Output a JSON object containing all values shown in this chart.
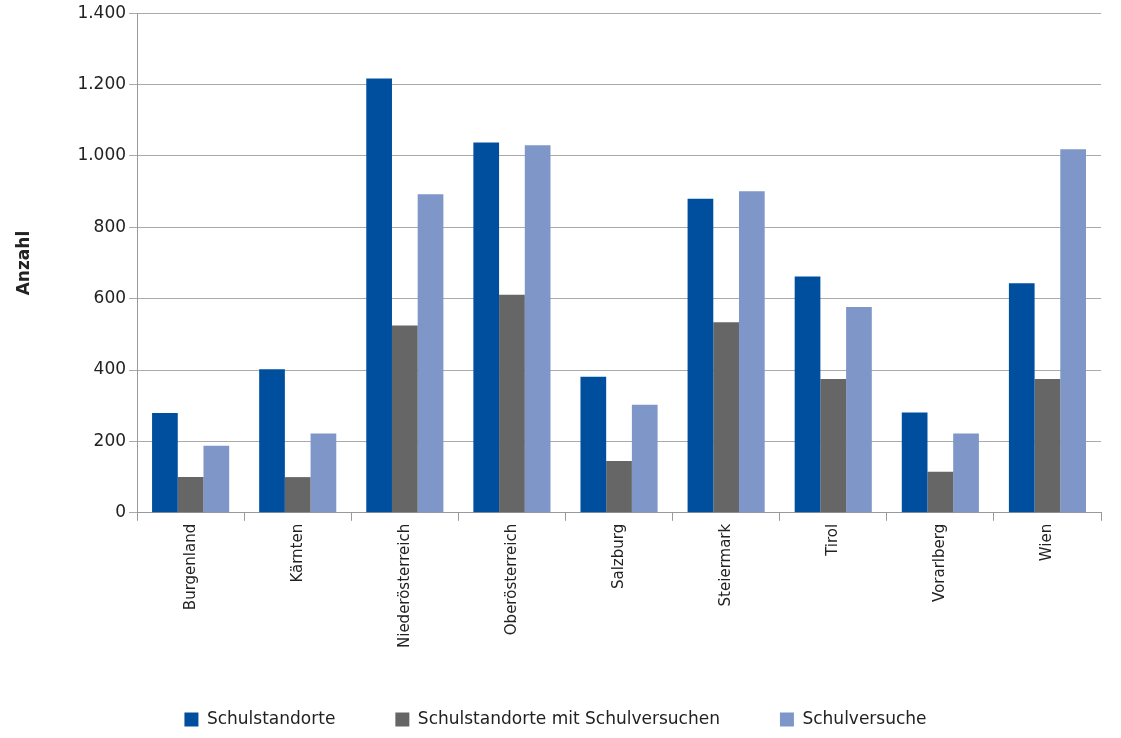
{
  "chart_data": {
    "type": "bar",
    "ylabel": "Anzahl",
    "categories": [
      "Burgenland",
      "Kärnten",
      "Niederösterreich",
      "Oberösterreich",
      "Salzburg",
      "Steiermark",
      "Tirol",
      "Vorarlberg",
      "Wien"
    ],
    "series": [
      {
        "name": "Schulstandorte",
        "color": "#004f9f",
        "values": [
          280,
          402,
          1217,
          1038,
          381,
          880,
          662,
          281,
          643
        ]
      },
      {
        "name": "Schulstandorte mit Schulversuchen",
        "color": "#666666",
        "values": [
          100,
          100,
          525,
          611,
          145,
          534,
          375,
          115,
          375
        ]
      },
      {
        "name": "Schulversuche",
        "color": "#7f96c8",
        "values": [
          188,
          222,
          893,
          1030,
          303,
          901,
          577,
          222,
          1019
        ]
      }
    ],
    "ylim": [
      0,
      1400
    ],
    "yticks": [
      0,
      200,
      400,
      600,
      800,
      {
        "value": 1000,
        "label": "1.000"
      },
      {
        "value": 1200,
        "label": "1.200"
      },
      {
        "value": 1400,
        "label": "1.400"
      }
    ],
    "grid": "y",
    "legend": "bottom"
  }
}
